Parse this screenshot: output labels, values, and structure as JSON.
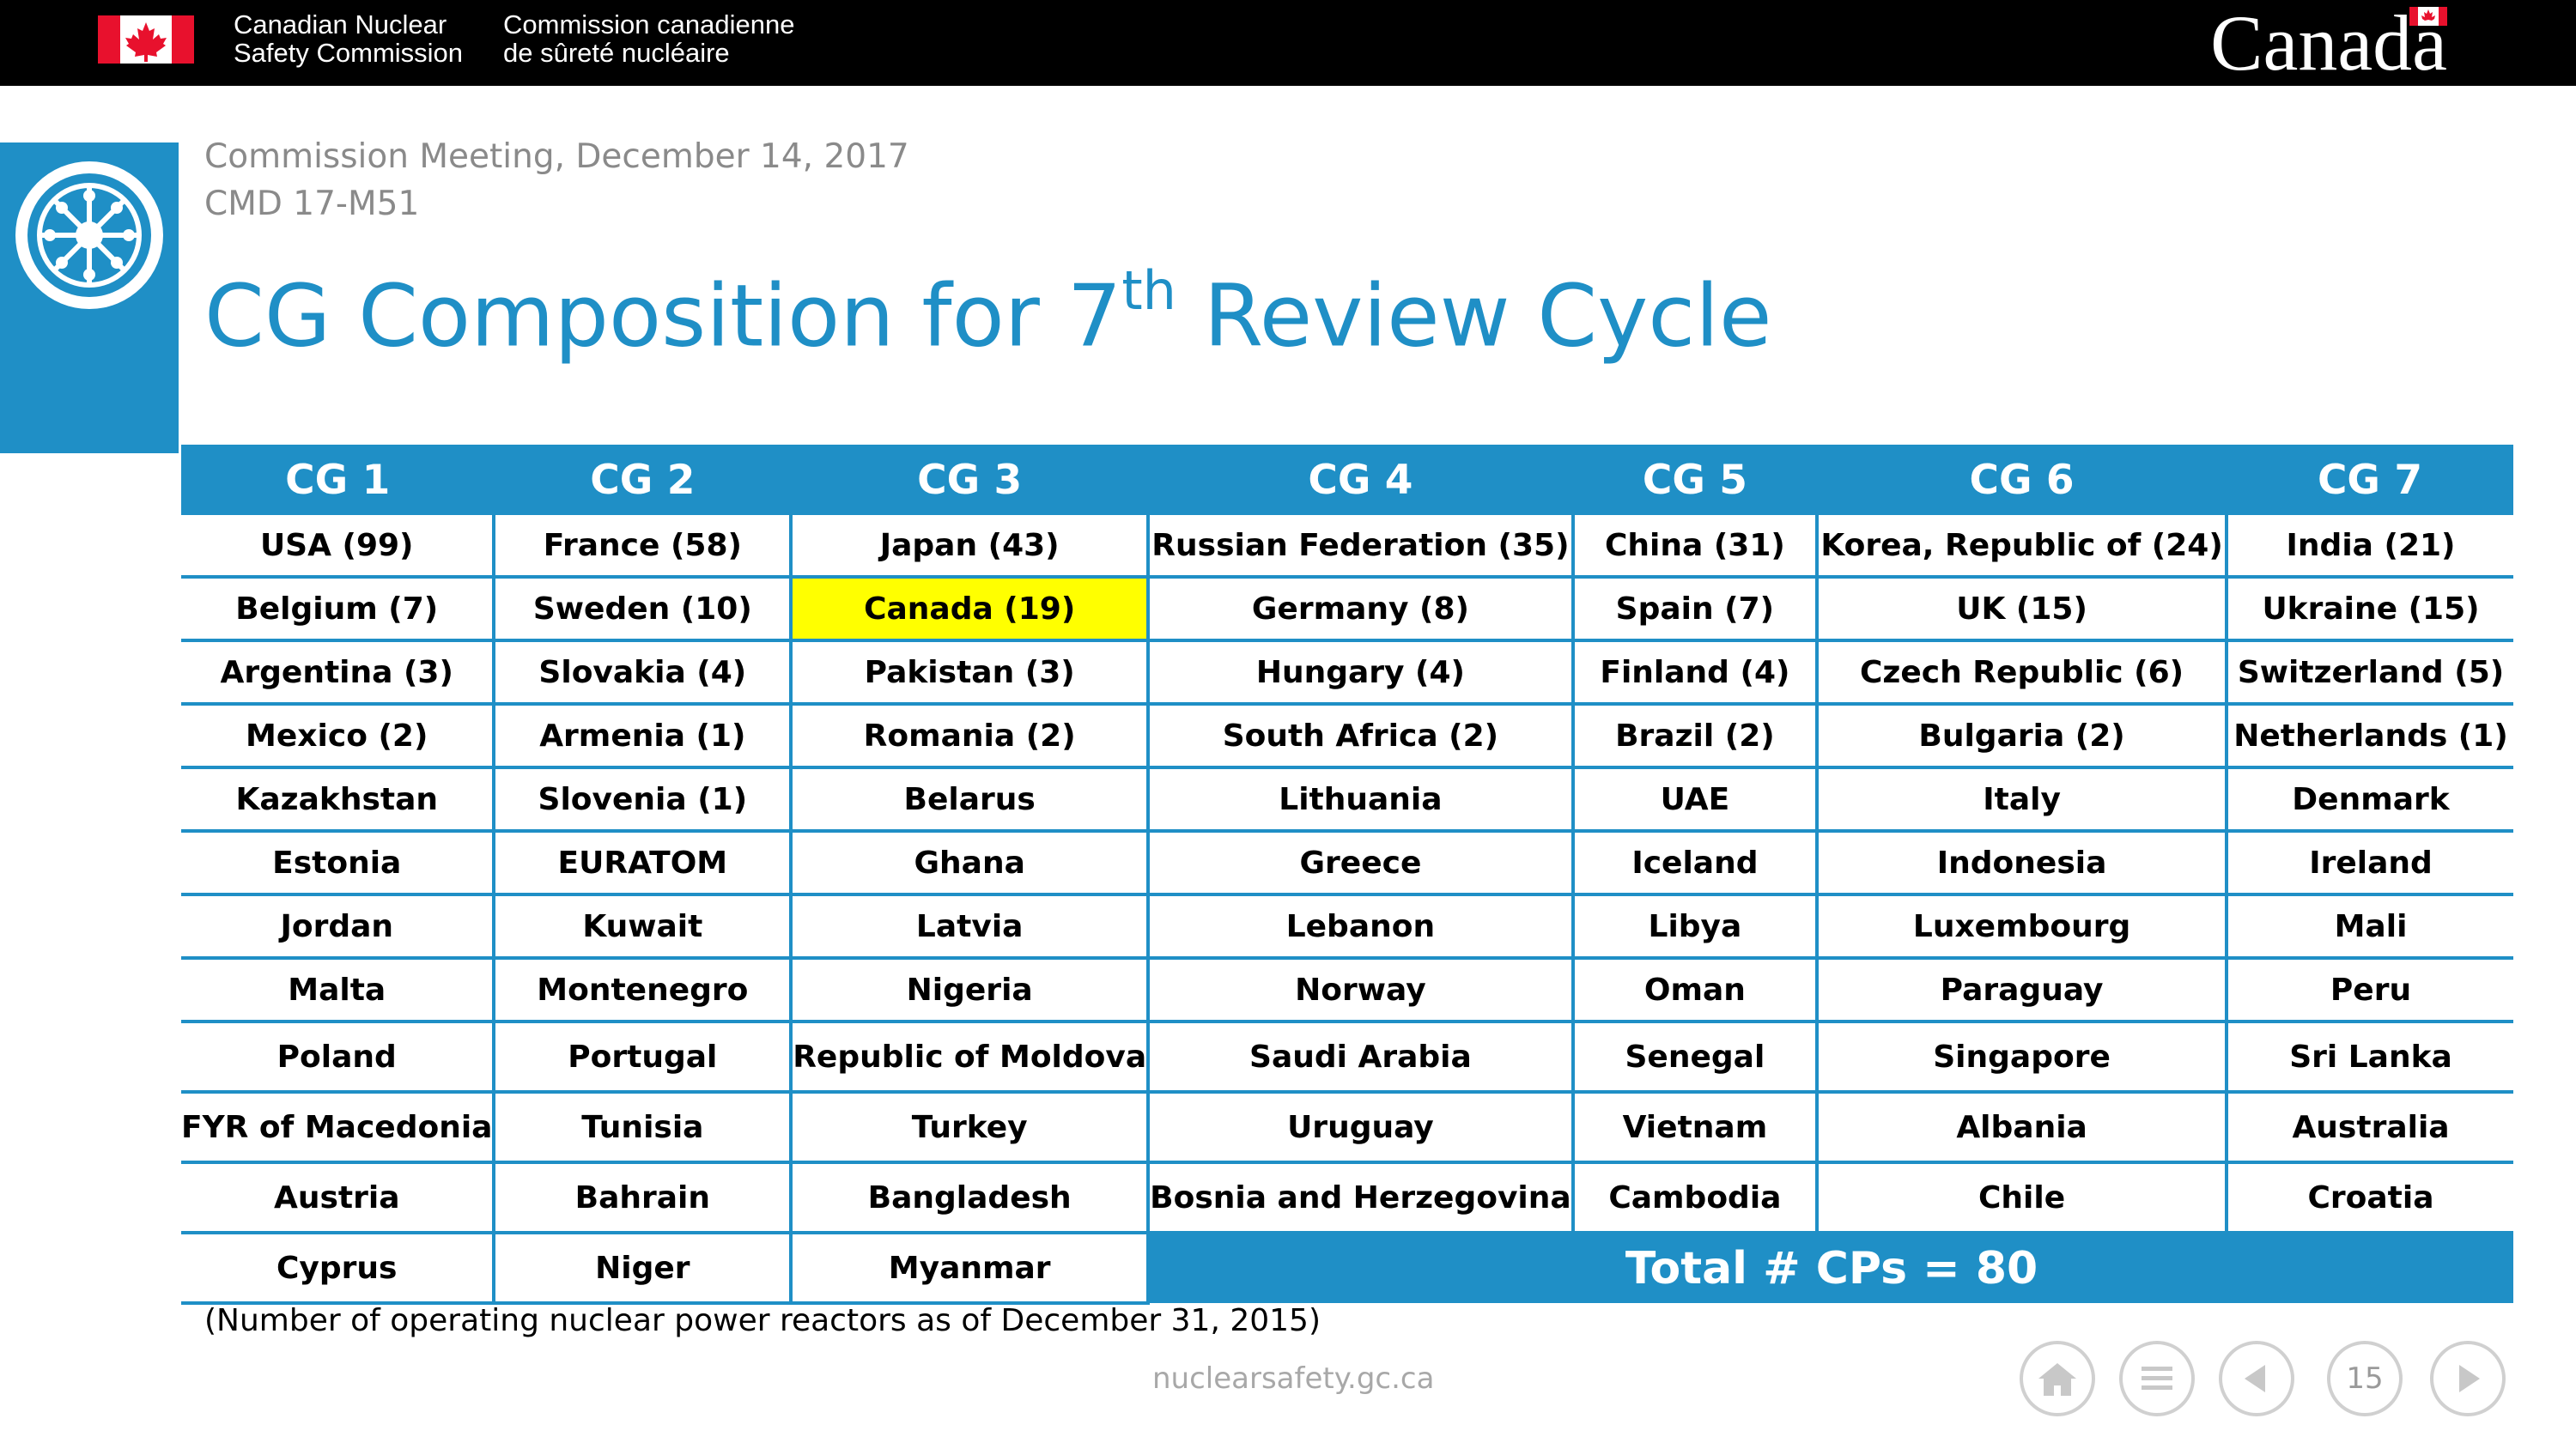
{
  "header": {
    "org_name_en_line1": "Canadian Nuclear",
    "org_name_en_line2": "Safety Commission",
    "org_name_fr_line1": "Commission canadienne",
    "org_name_fr_line2": "de sûreté nucléaire",
    "wordmark": "Canada"
  },
  "slide": {
    "meeting": "Commission Meeting, December 14, 2017",
    "cmd": "CMD 17-M51",
    "title_prefix": "CG Composition for 7",
    "title_sup": "th",
    "title_suffix": " Review Cycle"
  },
  "table": {
    "headers": [
      "CG 1",
      "CG 2",
      "CG 3",
      "CG 4",
      "CG 5",
      "CG 6",
      "CG 7"
    ],
    "rows": [
      [
        "USA (99)",
        "France (58)",
        "Japan (43)",
        "Russian Federation (35)",
        "China (31)",
        "Korea, Republic of  (24)",
        "India (21)"
      ],
      [
        "Belgium (7)",
        "Sweden (10)",
        "Canada (19)",
        "Germany (8)",
        "Spain (7)",
        "UK (15)",
        "Ukraine (15)"
      ],
      [
        "Argentina (3)",
        "Slovakia (4)",
        "Pakistan (3)",
        "Hungary (4)",
        "Finland (4)",
        "Czech Republic (6)",
        "Switzerland (5)"
      ],
      [
        "Mexico (2)",
        "Armenia (1)",
        "Romania (2)",
        "South Africa (2)",
        "Brazil (2)",
        "Bulgaria (2)",
        "Netherlands (1)"
      ],
      [
        "Kazakhstan",
        "Slovenia (1)",
        "Belarus",
        "Lithuania",
        "UAE",
        "Italy",
        "Denmark"
      ],
      [
        "Estonia",
        "EURATOM",
        "Ghana",
        "Greece",
        "Iceland",
        "Indonesia",
        "Ireland"
      ],
      [
        "Jordan",
        "Kuwait",
        "Latvia",
        "Lebanon",
        "Libya",
        "Luxembourg",
        "Mali"
      ],
      [
        "Malta",
        "Montenegro",
        "Nigeria",
        "Norway",
        "Oman",
        "Paraguay",
        "Peru"
      ],
      [
        "Poland",
        "Portugal",
        "Republic of Moldova",
        "Saudi Arabia",
        "Senegal",
        "Singapore",
        "Sri Lanka"
      ],
      [
        "FYR of Macedonia",
        "Tunisia",
        "Turkey",
        "Uruguay",
        "Vietnam",
        "Albania",
        "Australia"
      ],
      [
        "Austria",
        "Bahrain",
        "Bangladesh",
        "Bosnia and Herzegovina",
        "Cambodia",
        "Chile",
        "Croatia"
      ]
    ],
    "last_row": [
      "Cyprus",
      "Niger",
      "Myanmar"
    ],
    "total": "Total # CPs = 80",
    "highlight_color": "#ffff00",
    "accent_color": "#1f8fc6"
  },
  "footnote": "(Number of operating nuclear power reactors as of December 31, 2015)",
  "footer": {
    "site": "nuclearsafety.gc.ca",
    "page_number": "15",
    "nav_icons": [
      "home-icon",
      "menu-icon",
      "previous-icon",
      "next-icon"
    ]
  }
}
